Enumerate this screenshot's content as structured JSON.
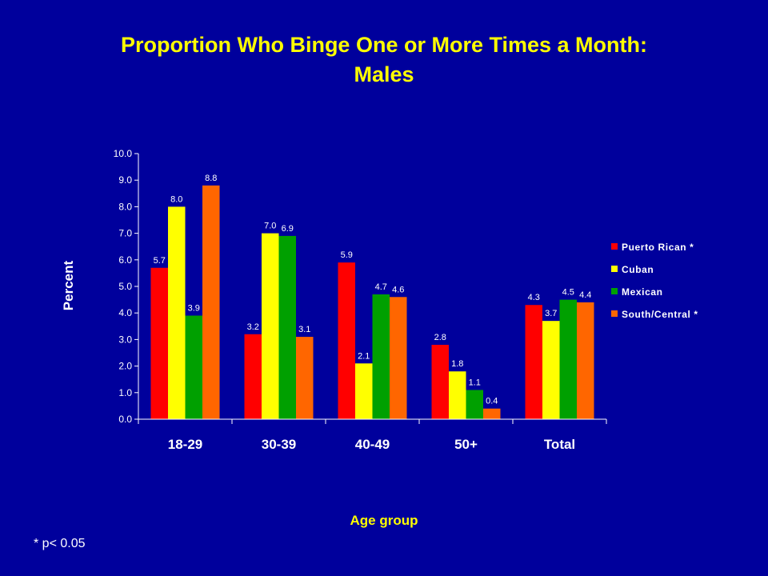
{
  "title": {
    "line1": "Proportion Who Binge One or More Times a Month:",
    "line2": "Males"
  },
  "footnote": "* p< 0.05",
  "colors": {
    "background": "#00009c",
    "title": "#ffff00",
    "text": "#ffffff"
  },
  "chart_data": {
    "type": "bar",
    "title": "Proportion Who Binge One or More Times a Month: Males",
    "xlabel": "Age group",
    "ylabel": "Percent",
    "ylim": [
      0,
      10
    ],
    "yticks": [
      "0.0",
      "1.0",
      "2.0",
      "3.0",
      "4.0",
      "5.0",
      "6.0",
      "7.0",
      "8.0",
      "9.0",
      "10.0"
    ],
    "categories": [
      "18-29",
      "30-39",
      "40-49",
      "50+",
      "Total"
    ],
    "series": [
      {
        "name": "Puerto Rican *",
        "color": "#ff0000",
        "values": [
          5.7,
          3.2,
          5.9,
          2.8,
          4.3
        ]
      },
      {
        "name": "Cuban",
        "color": "#ffff00",
        "values": [
          8.0,
          7.0,
          2.1,
          1.8,
          3.7
        ]
      },
      {
        "name": "Mexican",
        "color": "#00a000",
        "values": [
          3.9,
          6.9,
          4.7,
          1.1,
          4.5
        ]
      },
      {
        "name": "South/Central *",
        "color": "#ff6600",
        "values": [
          8.8,
          3.1,
          4.6,
          0.4,
          4.4
        ]
      }
    ],
    "legend_position": "right",
    "grid": false
  }
}
